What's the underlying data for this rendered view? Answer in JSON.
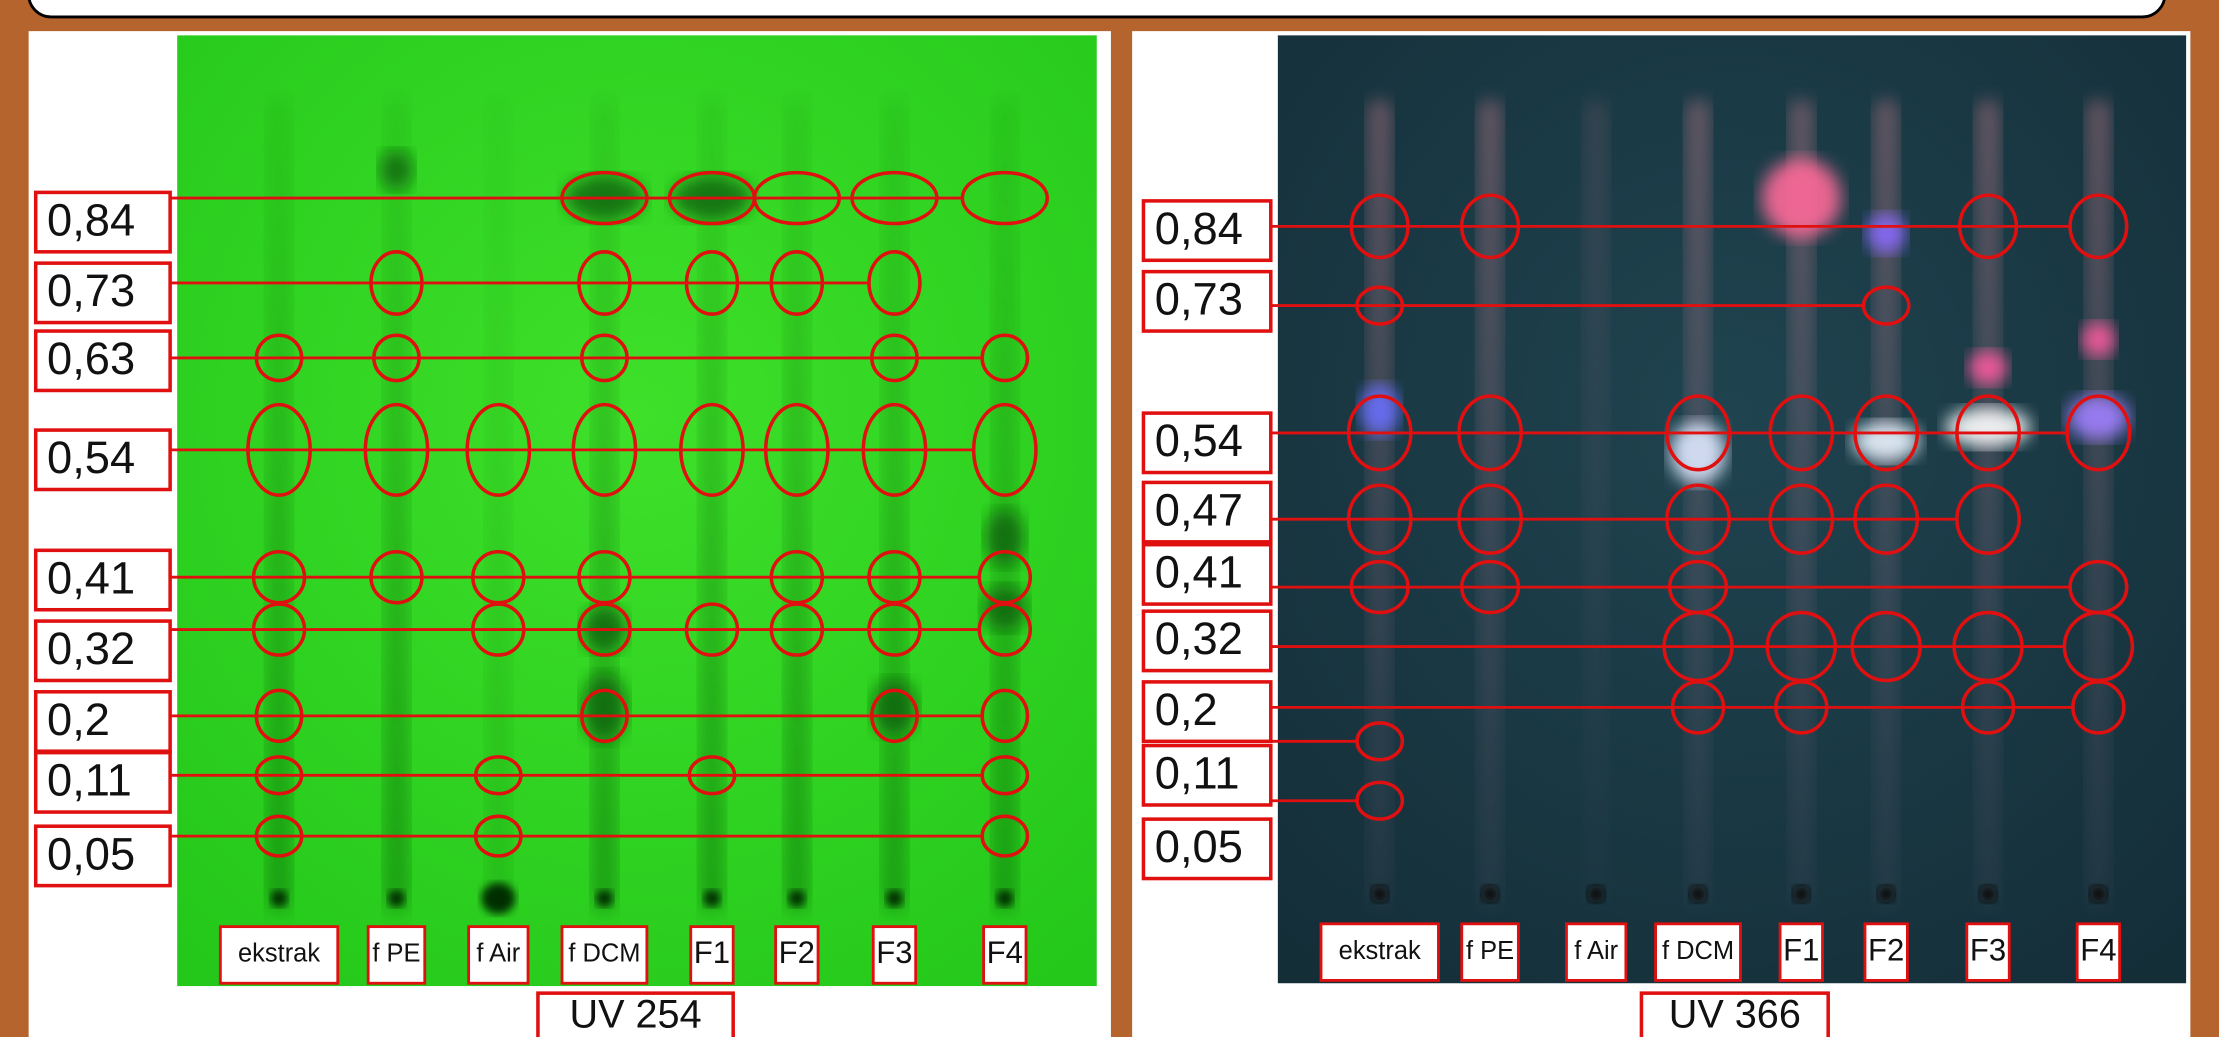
{
  "panels": [
    {
      "caption": "UV 254",
      "rf_labels": [
        "0,84",
        "0,73",
        "0,63",
        "0,54",
        "0,41",
        "0,32",
        "0,2",
        "0,11",
        "0,05"
      ],
      "lanes": [
        "ekstrak",
        "f PE",
        "f Air",
        "f DCM",
        "F1",
        "F2",
        "F3",
        "F4"
      ]
    },
    {
      "caption": "UV 366",
      "rf_labels": [
        "0,84",
        "0,73",
        "0,54",
        "0,47",
        "0,41",
        "0,32",
        "0,2",
        "0,11",
        "0,05"
      ],
      "lanes": [
        "ekstrak",
        "f PE",
        "f Air",
        "f DCM",
        "F1",
        "F2",
        "F3",
        "F4"
      ]
    }
  ]
}
